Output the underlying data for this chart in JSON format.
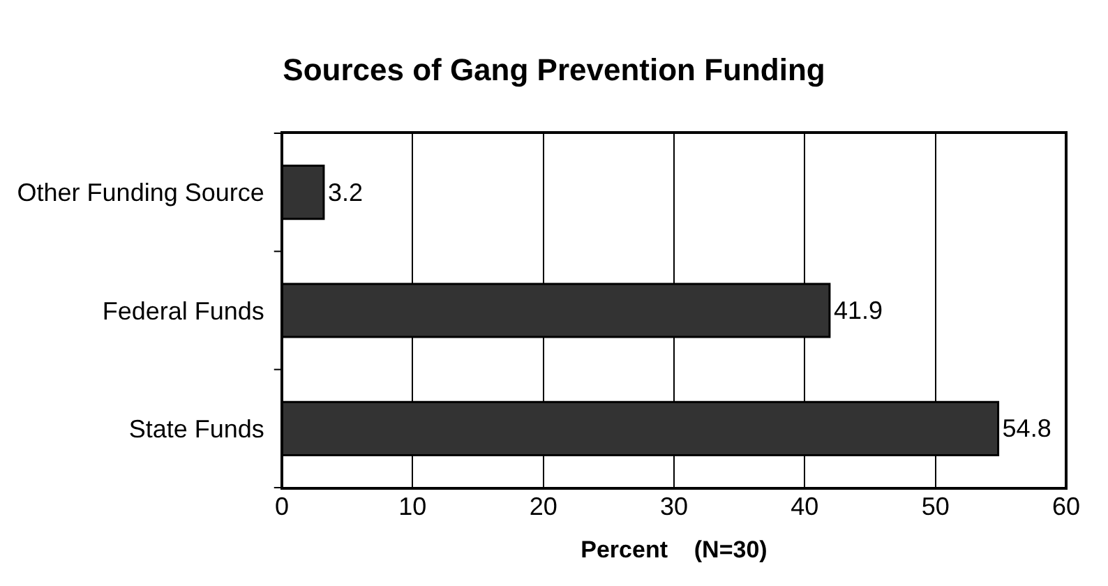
{
  "chart_data": {
    "type": "bar",
    "orientation": "horizontal",
    "title": "Sources of Gang Prevention Funding",
    "xlabel": "Percent    (N=30)",
    "categories": [
      "Other Funding Source",
      "Federal Funds",
      "State Funds"
    ],
    "values": [
      3.2,
      41.9,
      54.8
    ],
    "color": "#333333",
    "xlim": [
      0,
      60
    ],
    "xticks": [
      0,
      10,
      20,
      30,
      40,
      50,
      60
    ],
    "grid": "x",
    "data_labels": true,
    "legend": false
  }
}
